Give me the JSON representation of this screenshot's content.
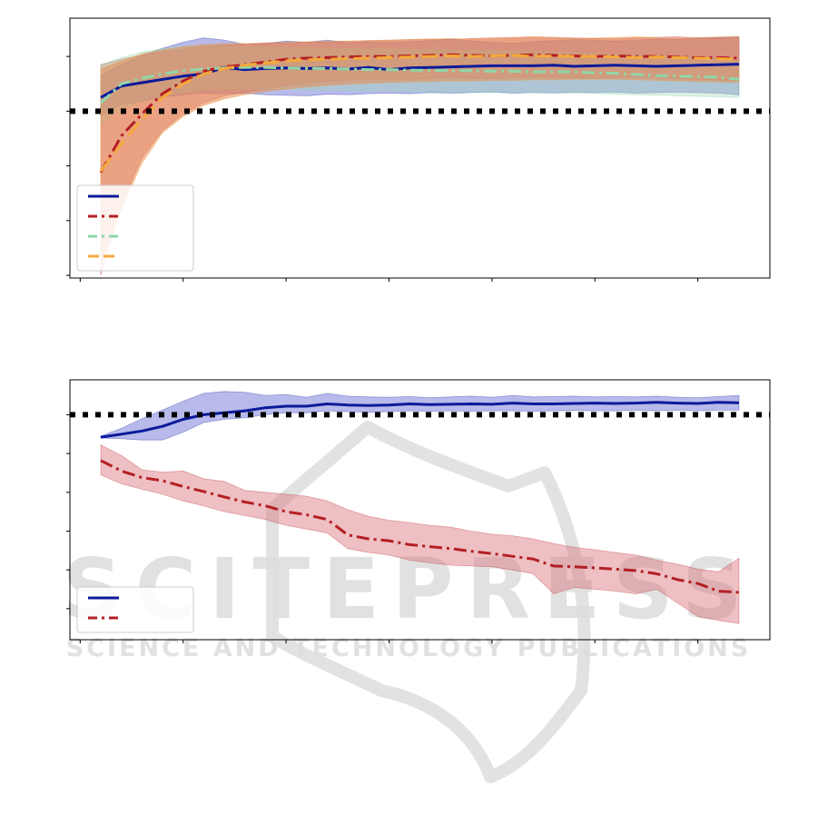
{
  "colors": {
    "blue_line": "#0b1a9a",
    "blue_band": "#5f66d0",
    "red_line": "#b41f24",
    "red_band": "#d9727a",
    "green_line": "#8fd6a8",
    "green_band": "#9fd8b4",
    "orange_line": "#f5a93a",
    "orange_band": "#e88a4f",
    "reference": "#000000",
    "watermark": "#d8d8d8"
  },
  "watermark": {
    "title": "SCITEPRESS",
    "subtitle": "SCIENCE AND TECHNOLOGY PUBLICATIONS"
  },
  "chart_data": [
    {
      "type": "line",
      "title": "",
      "xlabel": "",
      "ylabel": "",
      "xlim": [
        -0.1,
        6.7
      ],
      "ylim": [
        -3.05,
        1.7
      ],
      "x_ticks": [
        0,
        1,
        2,
        3,
        4,
        5,
        6
      ],
      "y_ticks": [
        -3,
        -2,
        -1,
        0,
        1
      ],
      "grid": false,
      "legend_position": "lower-left",
      "reference_line": {
        "y": 0,
        "style": "dotted"
      },
      "x": [
        0.2,
        0.4,
        0.6,
        0.8,
        1.0,
        1.2,
        1.4,
        1.6,
        1.8,
        2.0,
        2.2,
        2.4,
        2.6,
        2.8,
        3.0,
        3.2,
        3.4,
        3.6,
        3.8,
        4.0,
        4.2,
        4.4,
        4.6,
        4.8,
        5.0,
        5.2,
        5.4,
        5.6,
        5.8,
        6.0,
        6.2,
        6.4
      ],
      "series": [
        {
          "name": "",
          "color_key": "blue",
          "style": "solid",
          "values": [
            0.25,
            0.46,
            0.52,
            0.58,
            0.64,
            0.68,
            0.8,
            0.76,
            0.78,
            0.79,
            0.78,
            0.79,
            0.77,
            0.8,
            0.76,
            0.79,
            0.8,
            0.81,
            0.82,
            0.83,
            0.83,
            0.83,
            0.84,
            0.82,
            0.83,
            0.84,
            0.83,
            0.82,
            0.83,
            0.84,
            0.85,
            0.86
          ],
          "upper": [
            0.65,
            0.85,
            1.02,
            1.15,
            1.26,
            1.34,
            1.3,
            1.22,
            1.24,
            1.28,
            1.26,
            1.3,
            1.25,
            1.27,
            1.26,
            1.27,
            1.29,
            1.32,
            1.28,
            1.26,
            1.24,
            1.27,
            1.29,
            1.31,
            1.3,
            1.28,
            1.3,
            1.32,
            1.31,
            1.33,
            1.35,
            1.36
          ],
          "lower": [
            -0.08,
            0.12,
            0.18,
            0.26,
            0.3,
            0.33,
            0.32,
            0.33,
            0.3,
            0.29,
            0.28,
            0.31,
            0.3,
            0.32,
            0.33,
            0.32,
            0.34,
            0.33,
            0.34,
            0.35,
            0.33,
            0.34,
            0.33,
            0.35,
            0.34,
            0.35,
            0.33,
            0.34,
            0.35,
            0.34,
            0.33,
            0.3
          ]
        },
        {
          "name": "",
          "color_key": "red",
          "style": "dashdot",
          "values": [
            -1.12,
            -0.45,
            -0.05,
            0.32,
            0.55,
            0.73,
            0.81,
            0.85,
            0.9,
            0.95,
            0.97,
            0.98,
            0.99,
            1.0,
            1.0,
            1.01,
            1.02,
            1.03,
            1.02,
            1.01,
            1.02,
            1.03,
            1.02,
            1.01,
            1.0,
            1.01,
            1.0,
            1.0,
            0.99,
            0.98,
            0.98,
            0.97
          ],
          "upper": [
            0.85,
            0.95,
            1.02,
            1.08,
            1.12,
            1.18,
            1.2,
            1.22,
            1.24,
            1.25,
            1.26,
            1.27,
            1.28,
            1.29,
            1.3,
            1.31,
            1.32,
            1.3,
            1.33,
            1.34,
            1.35,
            1.36,
            1.35,
            1.34,
            1.33,
            1.32,
            1.34,
            1.35,
            1.36,
            1.34,
            1.33,
            1.34
          ],
          "lower": [
            -3.0,
            -1.7,
            -0.85,
            -0.35,
            -0.05,
            0.15,
            0.28,
            0.35,
            0.42,
            0.48,
            0.52,
            0.55,
            0.57,
            0.58,
            0.58,
            0.59,
            0.6,
            0.62,
            0.61,
            0.6,
            0.62,
            0.63,
            0.62,
            0.61,
            0.6,
            0.62,
            0.63,
            0.62,
            0.6,
            0.58,
            0.57,
            0.56
          ]
        },
        {
          "name": "",
          "color_key": "green",
          "style": "dashdot",
          "values": [
            0.15,
            0.5,
            0.6,
            0.68,
            0.74,
            0.77,
            0.79,
            0.8,
            0.8,
            0.79,
            0.78,
            0.78,
            0.77,
            0.76,
            0.76,
            0.75,
            0.75,
            0.74,
            0.74,
            0.73,
            0.73,
            0.72,
            0.72,
            0.72,
            0.7,
            0.69,
            0.67,
            0.65,
            0.64,
            0.63,
            0.62,
            0.58
          ],
          "upper": [
            0.85,
            0.98,
            1.08,
            1.14,
            1.18,
            1.2,
            1.19,
            1.18,
            1.17,
            1.16,
            1.16,
            1.15,
            1.15,
            1.14,
            1.14,
            1.13,
            1.13,
            1.12,
            1.12,
            1.11,
            1.1,
            1.09,
            1.08,
            1.07,
            1.06,
            1.04,
            1.03,
            1.02,
            1.0,
            0.98,
            0.96,
            0.92
          ],
          "lower": [
            -0.25,
            0.05,
            0.18,
            0.28,
            0.35,
            0.39,
            0.41,
            0.41,
            0.4,
            0.4,
            0.39,
            0.38,
            0.38,
            0.37,
            0.37,
            0.36,
            0.36,
            0.35,
            0.35,
            0.35,
            0.35,
            0.34,
            0.33,
            0.33,
            0.32,
            0.31,
            0.3,
            0.29,
            0.28,
            0.27,
            0.26,
            0.25
          ]
        },
        {
          "name": "",
          "color_key": "orange",
          "style": "dashed",
          "values": [
            -1.1,
            -0.6,
            -0.15,
            0.25,
            0.5,
            0.68,
            0.78,
            0.84,
            0.88,
            0.92,
            0.94,
            0.95,
            0.96,
            0.97,
            0.98,
            0.99,
            1.0,
            1.01,
            1.0,
            1.01,
            1.02,
            1.0,
            1.01,
            1.0,
            1.0,
            0.99,
            0.98,
            0.99,
            0.98,
            0.97,
            0.96,
            0.95
          ],
          "upper": [
            0.78,
            0.92,
            1.05,
            1.12,
            1.18,
            1.22,
            1.24,
            1.24,
            1.25,
            1.26,
            1.27,
            1.28,
            1.28,
            1.29,
            1.3,
            1.31,
            1.32,
            1.33,
            1.32,
            1.33,
            1.34,
            1.36,
            1.35,
            1.33,
            1.34,
            1.35,
            1.36,
            1.35,
            1.34,
            1.35,
            1.36,
            1.37
          ],
          "lower": [
            -2.8,
            -1.8,
            -0.95,
            -0.4,
            -0.1,
            0.1,
            0.22,
            0.3,
            0.36,
            0.4,
            0.44,
            0.47,
            0.49,
            0.51,
            0.52,
            0.53,
            0.54,
            0.55,
            0.55,
            0.56,
            0.56,
            0.57,
            0.57,
            0.58,
            0.58,
            0.58,
            0.57,
            0.56,
            0.55,
            0.54,
            0.53,
            0.52
          ]
        }
      ]
    },
    {
      "type": "line",
      "title": "",
      "xlabel": "",
      "ylabel": "",
      "xlim": [
        -0.1,
        6.7
      ],
      "ylim": [
        -5.8,
        0.9
      ],
      "x_ticks": [
        0,
        1,
        2,
        3,
        4,
        5,
        6
      ],
      "y_ticks": [
        -5,
        -4,
        -3,
        -2,
        -1,
        0
      ],
      "grid": false,
      "legend_position": "lower-left",
      "reference_line": {
        "y": 0,
        "style": "dotted"
      },
      "x": [
        0.2,
        0.4,
        0.6,
        0.8,
        1.0,
        1.2,
        1.4,
        1.6,
        1.8,
        2.0,
        2.2,
        2.4,
        2.6,
        2.8,
        3.0,
        3.2,
        3.4,
        3.6,
        3.8,
        4.0,
        4.2,
        4.4,
        4.6,
        4.8,
        5.0,
        5.2,
        5.4,
        5.6,
        5.8,
        6.0,
        6.2,
        6.4
      ],
      "series": [
        {
          "name": "",
          "color_key": "blue",
          "style": "solid",
          "values": [
            -0.58,
            -0.5,
            -0.42,
            -0.3,
            -0.12,
            0.0,
            0.05,
            0.1,
            0.18,
            0.22,
            0.22,
            0.28,
            0.25,
            0.24,
            0.25,
            0.28,
            0.26,
            0.27,
            0.28,
            0.27,
            0.3,
            0.28,
            0.28,
            0.29,
            0.3,
            0.29,
            0.3,
            0.32,
            0.3,
            0.29,
            0.32,
            0.31
          ],
          "upper": [
            -0.55,
            -0.35,
            -0.1,
            0.12,
            0.35,
            0.55,
            0.6,
            0.58,
            0.5,
            0.52,
            0.45,
            0.55,
            0.48,
            0.46,
            0.45,
            0.47,
            0.44,
            0.46,
            0.48,
            0.45,
            0.5,
            0.46,
            0.47,
            0.48,
            0.46,
            0.47,
            0.46,
            0.48,
            0.45,
            0.44,
            0.47,
            0.5
          ],
          "lower": [
            -0.6,
            -0.62,
            -0.65,
            -0.65,
            -0.45,
            -0.2,
            -0.12,
            -0.08,
            0.0,
            0.05,
            0.05,
            0.1,
            0.08,
            0.06,
            0.08,
            0.1,
            0.09,
            0.1,
            0.09,
            0.1,
            0.1,
            0.09,
            0.1,
            0.11,
            0.1,
            0.1,
            0.12,
            0.1,
            0.12,
            0.1,
            0.12,
            0.12
          ]
        },
        {
          "name": "",
          "color_key": "red",
          "style": "dashdot",
          "values": [
            -1.18,
            -1.45,
            -1.62,
            -1.7,
            -1.85,
            -1.98,
            -2.12,
            -2.25,
            -2.35,
            -2.5,
            -2.58,
            -2.7,
            -3.1,
            -3.2,
            -3.25,
            -3.35,
            -3.4,
            -3.45,
            -3.52,
            -3.58,
            -3.65,
            -3.72,
            -3.9,
            -3.92,
            -3.95,
            -3.98,
            -4.02,
            -4.1,
            -4.25,
            -4.35,
            -4.55,
            -4.58
          ],
          "upper": [
            -0.78,
            -1.05,
            -1.42,
            -1.48,
            -1.45,
            -1.65,
            -1.72,
            -1.95,
            -2.0,
            -2.05,
            -2.1,
            -2.22,
            -2.45,
            -2.62,
            -2.72,
            -2.78,
            -2.85,
            -2.9,
            -3.0,
            -3.08,
            -3.12,
            -3.2,
            -3.32,
            -3.42,
            -3.48,
            -3.55,
            -3.62,
            -3.75,
            -3.85,
            -3.98,
            -4.05,
            -3.7
          ],
          "lower": [
            -1.55,
            -1.78,
            -1.92,
            -2.05,
            -2.22,
            -2.35,
            -2.5,
            -2.6,
            -2.7,
            -2.85,
            -2.95,
            -3.05,
            -3.45,
            -3.55,
            -3.62,
            -3.75,
            -3.82,
            -3.88,
            -3.9,
            -3.92,
            -4.0,
            -4.1,
            -4.62,
            -4.45,
            -4.5,
            -4.55,
            -4.62,
            -4.5,
            -4.85,
            -5.2,
            -5.3,
            -5.38
          ]
        }
      ]
    }
  ]
}
